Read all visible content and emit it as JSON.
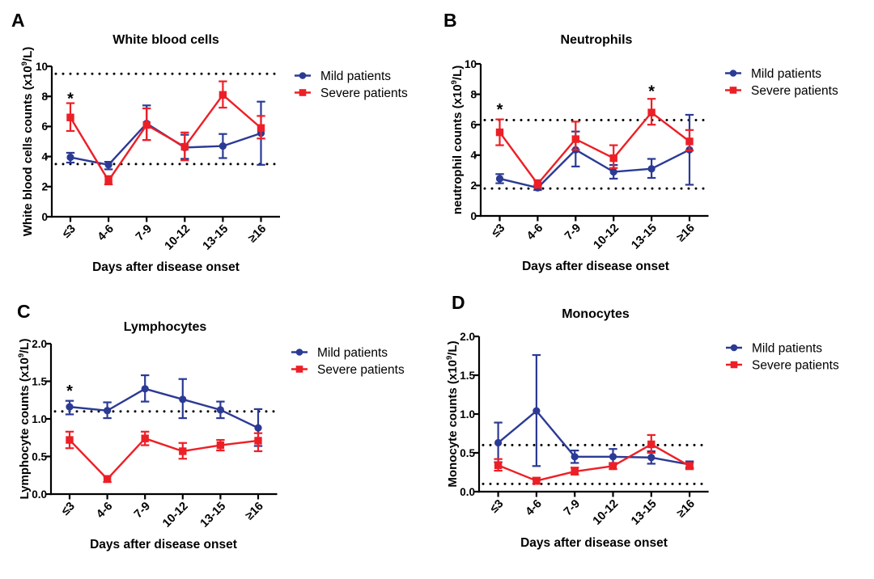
{
  "figure": {
    "background": "#ffffff",
    "colors": {
      "mild": "#2b3a94",
      "severe": "#ed1f26",
      "axis": "#000000",
      "reference_line": "#000000"
    },
    "legend": {
      "position": "right-of-plot",
      "items": [
        {
          "series": "mild",
          "label": "Mild patients",
          "marker": "circle"
        },
        {
          "series": "severe",
          "label": "Severe patients",
          "marker": "square"
        }
      ]
    }
  },
  "chart_data": [
    {
      "panel": "A",
      "type": "line",
      "title": "White blood cells",
      "ylabel": "White blood cells counts (x10⁹/L)",
      "ylabel_pre": "White blood cells counts (x10",
      "ylabel_sup": "9",
      "ylabel_post": "/L)",
      "xlabel": "Days after disease onset",
      "categories": [
        "≤3",
        "4-6",
        "7-9",
        "10-12",
        "13-15",
        "≥16"
      ],
      "ylim": [
        0,
        10
      ],
      "yticks": [
        0,
        2,
        4,
        6,
        8,
        10
      ],
      "ytick_labels": [
        "0",
        "2",
        "4",
        "6",
        "8",
        "10"
      ],
      "reference_lines": [
        3.5,
        9.5
      ],
      "significance": [
        {
          "category": "≤3",
          "label": "*",
          "y": 8.2
        }
      ],
      "series": [
        {
          "name": "Mild patients",
          "marker": "circle",
          "values": [
            3.95,
            3.45,
            6.2,
            4.6,
            4.7,
            5.55
          ],
          "err_up": [
            0.3,
            0.2,
            1.2,
            0.85,
            0.8,
            2.1
          ],
          "err_down": [
            0.35,
            0.3,
            1.1,
            0.75,
            0.8,
            2.1
          ]
        },
        {
          "name": "Severe patients",
          "marker": "square",
          "values": [
            6.6,
            2.4,
            6.1,
            4.65,
            8.1,
            5.9
          ],
          "err_up": [
            0.95,
            0.3,
            1.1,
            0.95,
            0.9,
            0.8
          ],
          "err_down": [
            0.9,
            0.25,
            1.0,
            0.9,
            0.85,
            0.7
          ]
        }
      ]
    },
    {
      "panel": "B",
      "type": "line",
      "title": "Neutrophils",
      "ylabel": "neutrophil counts (x10⁹/L)",
      "ylabel_pre": "neutrophil counts (x10",
      "ylabel_sup": "9",
      "ylabel_post": "/L)",
      "xlabel": "Days after disease onset",
      "categories": [
        "≤3",
        "4-6",
        "7-9",
        "10-12",
        "13-15",
        "≥16"
      ],
      "ylim": [
        0,
        10
      ],
      "yticks": [
        0,
        2,
        4,
        6,
        8,
        10
      ],
      "ytick_labels": [
        "0",
        "2",
        "4",
        "6",
        "8",
        "10"
      ],
      "reference_lines": [
        1.8,
        6.3
      ],
      "significance": [
        {
          "category": "≤3",
          "label": "*",
          "y": 7.35
        },
        {
          "category": "13-15",
          "label": "*",
          "y": 8.55
        }
      ],
      "series": [
        {
          "name": "Mild patients",
          "marker": "circle",
          "values": [
            2.45,
            1.85,
            4.35,
            2.9,
            3.1,
            4.35
          ],
          "err_up": [
            0.3,
            0.15,
            1.2,
            0.45,
            0.65,
            2.3
          ],
          "err_down": [
            0.3,
            0.15,
            1.1,
            0.45,
            0.6,
            2.3
          ]
        },
        {
          "name": "Severe patients",
          "marker": "square",
          "values": [
            5.5,
            2.1,
            5.05,
            3.8,
            6.8,
            4.9
          ],
          "err_up": [
            0.85,
            0.25,
            1.15,
            0.85,
            0.9,
            0.75
          ],
          "err_down": [
            0.85,
            0.25,
            0.7,
            0.65,
            0.8,
            0.6
          ]
        }
      ]
    },
    {
      "panel": "C",
      "type": "line",
      "title": "Lymphocytes",
      "ylabel": "Lymphocyte counts (x10⁹/L)",
      "ylabel_pre": "Lymphocyte counts (x10",
      "ylabel_sup": "9",
      "ylabel_post": "/L)",
      "xlabel": "Days after disease onset",
      "categories": [
        "≤3",
        "4-6",
        "7-9",
        "10-12",
        "13-15",
        "≥16"
      ],
      "ylim": [
        0,
        2
      ],
      "yticks": [
        0,
        0.5,
        1,
        1.5,
        2
      ],
      "ytick_labels": [
        "0.0",
        "0.5",
        "1.0",
        "1.5",
        "2.0"
      ],
      "reference_lines": [
        1.1
      ],
      "significance": [
        {
          "category": "≤3",
          "label": "*",
          "y": 1.44
        }
      ],
      "series": [
        {
          "name": "Mild patients",
          "marker": "circle",
          "values": [
            1.16,
            1.11,
            1.4,
            1.26,
            1.12,
            0.88
          ],
          "err_up": [
            0.08,
            0.11,
            0.18,
            0.27,
            0.11,
            0.25
          ],
          "err_down": [
            0.1,
            0.1,
            0.17,
            0.25,
            0.11,
            0.24
          ]
        },
        {
          "name": "Severe patients",
          "marker": "square",
          "values": [
            0.72,
            0.2,
            0.74,
            0.57,
            0.65,
            0.71
          ],
          "err_up": [
            0.11,
            0.04,
            0.09,
            0.11,
            0.07,
            0.1
          ],
          "err_down": [
            0.11,
            0.04,
            0.09,
            0.1,
            0.07,
            0.14
          ]
        }
      ]
    },
    {
      "panel": "D",
      "type": "line",
      "title": "Monocytes",
      "ylabel": "Monocyte counts (x10⁹/L)",
      "ylabel_pre": "Monocyte counts (x10",
      "ylabel_sup": "9",
      "ylabel_post": "/L)",
      "xlabel": "Days after disease onset",
      "categories": [
        "≤3",
        "4-6",
        "7-9",
        "10-12",
        "13-15",
        "≥16"
      ],
      "ylim": [
        0,
        2
      ],
      "yticks": [
        0,
        0.5,
        1,
        1.5,
        2
      ],
      "ytick_labels": [
        "0.0",
        "0.5",
        "1.0",
        "1.5",
        "2.0"
      ],
      "reference_lines": [
        0.1,
        0.6
      ],
      "significance": [],
      "series": [
        {
          "name": "Mild patients",
          "marker": "circle",
          "values": [
            0.63,
            1.04,
            0.45,
            0.45,
            0.44,
            0.35
          ],
          "err_up": [
            0.26,
            0.72,
            0.08,
            0.1,
            0.08,
            0.04
          ],
          "err_down": [
            0.25,
            0.71,
            0.08,
            0.1,
            0.08,
            0.04
          ]
        },
        {
          "name": "Severe patients",
          "marker": "square",
          "values": [
            0.34,
            0.14,
            0.26,
            0.33,
            0.61,
            0.33
          ],
          "err_up": [
            0.08,
            0.04,
            0.05,
            0.04,
            0.12,
            0.04
          ],
          "err_down": [
            0.07,
            0.04,
            0.04,
            0.04,
            0.11,
            0.04
          ]
        }
      ]
    }
  ]
}
